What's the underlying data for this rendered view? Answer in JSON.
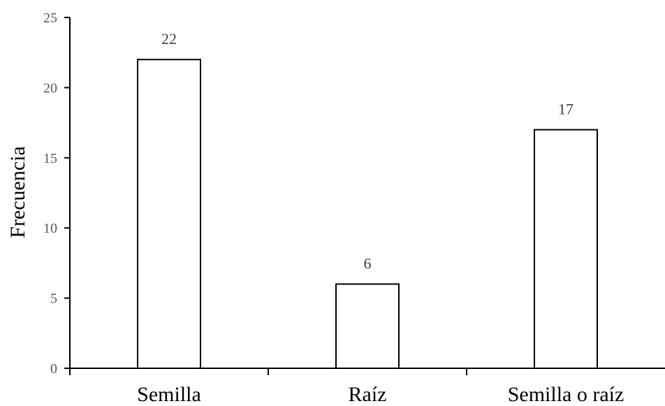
{
  "chart_data": {
    "type": "bar",
    "title": "",
    "xlabel": "",
    "ylabel": "Frecuencia",
    "categories": [
      "Semilla",
      "Raíz",
      "Semilla o raíz"
    ],
    "values": [
      22,
      6,
      17
    ],
    "data_labels": [
      "22",
      "6",
      "17"
    ],
    "ylim": [
      0,
      25
    ],
    "yticks": [
      0,
      5,
      10,
      15,
      20,
      25
    ],
    "ytick_labels": [
      "0",
      "5",
      "10",
      "15",
      "20",
      "25"
    ],
    "grid": false,
    "legend": "none",
    "bar_fill": "#ffffff",
    "bar_stroke": "#000000"
  }
}
